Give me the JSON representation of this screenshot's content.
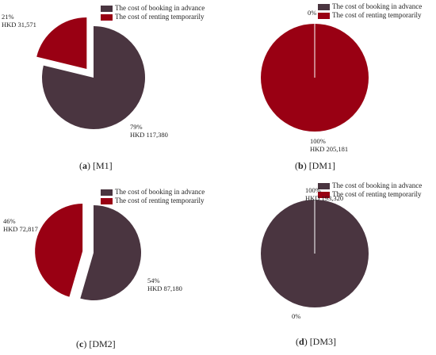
{
  "colors": {
    "advance": "#4a3540",
    "renting": "#990013"
  },
  "chart_data": [
    {
      "type": "pie",
      "caption_letter": "a",
      "caption_label": "[M1]",
      "legend": [
        "The cost of booking in advance",
        "The cost of renting temporarily"
      ],
      "slices": [
        {
          "name": "The cost of booking in advance",
          "percent": 79,
          "pct_label": "79%",
          "value": 117380,
          "value_label": "HKD 117,380",
          "exploded": false
        },
        {
          "name": "The cost of renting temporarily",
          "percent": 21,
          "pct_label": "21%",
          "value": 31571,
          "value_label": "HKD 31,571",
          "exploded": true
        }
      ]
    },
    {
      "type": "pie",
      "caption_letter": "b",
      "caption_label": "[DM1]",
      "legend": [
        "The cost of booking in advance",
        "The cost of renting temporarily"
      ],
      "slices": [
        {
          "name": "The cost of booking in advance",
          "percent": 0,
          "pct_label": "0%",
          "value": 0,
          "value_label": "",
          "exploded": false
        },
        {
          "name": "The cost of renting temporarily",
          "percent": 100,
          "pct_label": "100%",
          "value": 205181,
          "value_label": "HKD 205,181",
          "exploded": false
        }
      ]
    },
    {
      "type": "pie",
      "caption_letter": "c",
      "caption_label": "[DM2]",
      "legend": [
        "The cost of booking in advance",
        "The cost of renting temporarily"
      ],
      "slices": [
        {
          "name": "The cost of booking in advance",
          "percent": 54,
          "pct_label": "54%",
          "value": 87180,
          "value_label": "HKD 87,180",
          "exploded": false
        },
        {
          "name": "The cost of renting temporarily",
          "percent": 46,
          "pct_label": "46%",
          "value": 72817,
          "value_label": "HKD 72,817",
          "exploded": true
        }
      ]
    },
    {
      "type": "pie",
      "caption_letter": "d",
      "caption_label": "[DM3]",
      "legend": [
        "The cost of booking in advance",
        "The cost of renting temporarily"
      ],
      "slices": [
        {
          "name": "The cost of booking in advance",
          "percent": 100,
          "pct_label": "100%",
          "value": 193320,
          "value_label": "HKD 193,320",
          "exploded": false
        },
        {
          "name": "The cost of renting temporarily",
          "percent": 0,
          "pct_label": "0%",
          "value": 0,
          "value_label": "",
          "exploded": false
        }
      ]
    }
  ]
}
